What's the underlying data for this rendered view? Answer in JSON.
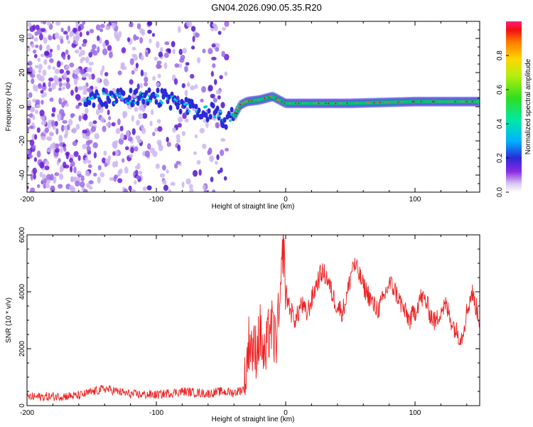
{
  "title": "GN04.2026.090.05.35.R20",
  "chart_data": [
    {
      "type": "heatmap",
      "xlabel": "Height of straight line (km)",
      "ylabel": "Frequency (Hz)",
      "xlim": [
        -200,
        150
      ],
      "ylim": [
        -50,
        50
      ],
      "x_ticks": [
        -200,
        -100,
        0,
        100
      ],
      "y_ticks": [
        -40,
        -20,
        0,
        20,
        40
      ],
      "colorbar": {
        "label": "Normalized spectral amplitude",
        "range": [
          0,
          1
        ],
        "ticks": [
          "0.0",
          "0.2",
          "0.4",
          "0.6",
          "0.8"
        ]
      },
      "ridge": {
        "x": [
          -155,
          -140,
          -120,
          -100,
          -90,
          -80,
          -70,
          -60,
          -50,
          -45,
          -40,
          -35,
          -30,
          -20,
          -10,
          0,
          20,
          50,
          100,
          150
        ],
        "frequency": [
          4,
          5,
          5,
          6,
          4,
          0,
          -2,
          -3,
          -5,
          -8,
          -6,
          1,
          3,
          4,
          6,
          2,
          2,
          2,
          3,
          3
        ]
      },
      "noise_region_x": [
        -200,
        -45
      ]
    },
    {
      "type": "line",
      "xlabel": "Height of straight line (km)",
      "ylabel": "SNR (10 * v/v)",
      "xlim": [
        -200,
        150
      ],
      "ylim": [
        0,
        6000
      ],
      "x_ticks": [
        -200,
        -100,
        0,
        100
      ],
      "y_ticks": [
        0,
        2000,
        4000,
        6000
      ],
      "series": [
        {
          "color": "#ee2222",
          "x": [
            -200,
            -180,
            -160,
            -140,
            -120,
            -100,
            -80,
            -60,
            -50,
            -40,
            -32,
            -28,
            -24,
            -20,
            -16,
            -12,
            -8,
            -4,
            -2,
            0,
            4,
            8,
            12,
            16,
            20,
            24,
            28,
            32,
            36,
            40,
            44,
            48,
            52,
            56,
            60,
            64,
            68,
            72,
            76,
            80,
            84,
            88,
            92,
            96,
            100,
            104,
            108,
            112,
            116,
            120,
            124,
            128,
            132,
            136,
            140,
            144,
            150
          ],
          "y": [
            300,
            320,
            350,
            600,
            400,
            380,
            500,
            420,
            500,
            450,
            600,
            2400,
            1800,
            2600,
            1500,
            2900,
            2200,
            3400,
            6000,
            4000,
            3300,
            3000,
            3600,
            3200,
            3700,
            4300,
            4700,
            4500,
            3900,
            3500,
            3300,
            4000,
            5000,
            4700,
            4200,
            3900,
            3500,
            3400,
            3800,
            4300,
            4100,
            3700,
            3300,
            3000,
            3300,
            3800,
            3700,
            3200,
            2900,
            3400,
            3500,
            3000,
            2600,
            2400,
            3300,
            4000,
            3000
          ]
        }
      ]
    }
  ]
}
